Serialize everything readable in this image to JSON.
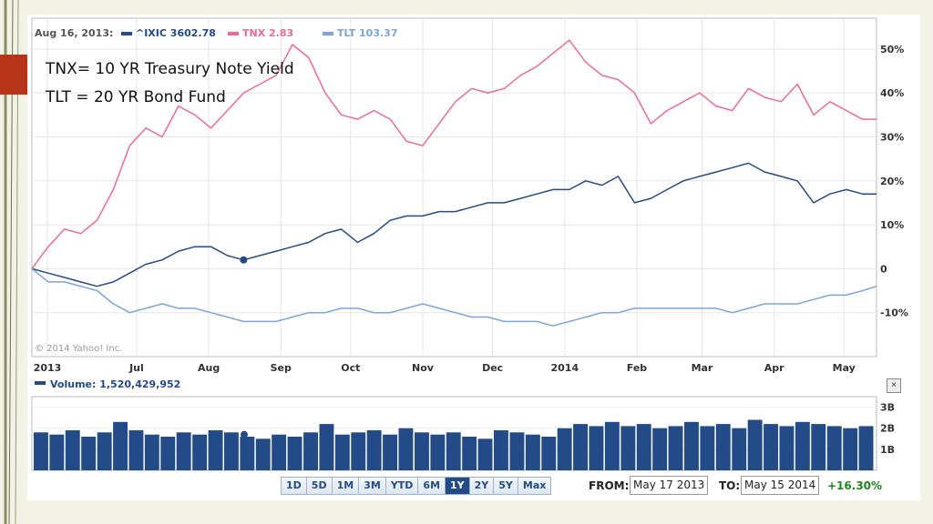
{
  "overlay": {
    "line1": "TNX= 10 YR Treasury Note Yield",
    "line2": "TLT = 20 YR Bond Fund"
  },
  "colors": {
    "ixic": "#234b88",
    "tnx": "#ee6a93",
    "tlt": "#7aa6db",
    "volume": "#234b88",
    "accent_red": "#b73418",
    "positive": "#1a8a1a"
  },
  "legend": {
    "date": "Aug 16, 2013:",
    "ixic": "^IXIC 3602.78",
    "tnx": "TNX 2.83",
    "tlt": "TLT 103.37"
  },
  "copyright": "© 2014 Yahoo! Inc.",
  "volume_label": "Volume: 1,520,429,952",
  "close_icon": "×",
  "range_buttons": [
    "1D",
    "5D",
    "1M",
    "3M",
    "YTD",
    "6M",
    "1Y",
    "2Y",
    "5Y",
    "Max"
  ],
  "active_range": "1Y",
  "from_label": "FROM:",
  "from_value": "May 17 2013",
  "to_label": "TO:",
  "to_value": "May 15 2014",
  "change": "+16.30%",
  "chart_data": [
    {
      "type": "line",
      "x_tick_labels": [
        "2013",
        "Jul",
        "Aug",
        "Sep",
        "Oct",
        "Nov",
        "Dec",
        "2014",
        "Feb",
        "Mar",
        "Apr",
        "May"
      ],
      "y_tick_labels": [
        "50%",
        "40%",
        "30%",
        "20%",
        "10%",
        "0",
        "-10%"
      ],
      "ylim": [
        -20,
        57
      ],
      "grid": true,
      "legend_position": "top-left",
      "x": [
        "2013-05-17",
        "2013-05-24",
        "2013-05-31",
        "2013-06-07",
        "2013-06-14",
        "2013-06-21",
        "2013-06-28",
        "2013-07-05",
        "2013-07-12",
        "2013-07-19",
        "2013-07-26",
        "2013-08-02",
        "2013-08-09",
        "2013-08-16",
        "2013-08-23",
        "2013-08-30",
        "2013-09-06",
        "2013-09-13",
        "2013-09-20",
        "2013-09-27",
        "2013-10-04",
        "2013-10-11",
        "2013-10-18",
        "2013-10-25",
        "2013-11-01",
        "2013-11-08",
        "2013-11-15",
        "2013-11-22",
        "2013-11-29",
        "2013-12-06",
        "2013-12-13",
        "2013-12-20",
        "2013-12-27",
        "2014-01-03",
        "2014-01-10",
        "2014-01-17",
        "2014-01-24",
        "2014-01-31",
        "2014-02-07",
        "2014-02-14",
        "2014-02-21",
        "2014-02-28",
        "2014-03-07",
        "2014-03-14",
        "2014-03-21",
        "2014-03-28",
        "2014-04-04",
        "2014-04-11",
        "2014-04-18",
        "2014-04-25",
        "2014-05-02",
        "2014-05-09",
        "2014-05-15"
      ],
      "series": [
        {
          "name": "TNX",
          "values": [
            0,
            5,
            9,
            8,
            11,
            18,
            28,
            32,
            30,
            37,
            35,
            32,
            36,
            40,
            42,
            44,
            51,
            48,
            40,
            35,
            34,
            36,
            34,
            29,
            28,
            33,
            38,
            41,
            40,
            41,
            44,
            46,
            49,
            52,
            47,
            44,
            43,
            40,
            33,
            36,
            38,
            40,
            37,
            36,
            41,
            39,
            38,
            42,
            35,
            38,
            36,
            34,
            34
          ]
        },
        {
          "name": "^IXIC",
          "values": [
            0,
            -1,
            -2,
            -3,
            -4,
            -3,
            -1,
            1,
            2,
            4,
            5,
            5,
            3,
            2,
            3,
            4,
            5,
            6,
            8,
            9,
            6,
            8,
            11,
            12,
            12,
            13,
            13,
            14,
            15,
            15,
            16,
            17,
            18,
            18,
            20,
            19,
            21,
            15,
            16,
            18,
            20,
            21,
            22,
            23,
            24,
            22,
            21,
            20,
            15,
            17,
            18,
            17,
            17
          ]
        },
        {
          "name": "TLT",
          "values": [
            0,
            -3,
            -3,
            -4,
            -5,
            -8,
            -10,
            -9,
            -8,
            -9,
            -9,
            -10,
            -11,
            -12,
            -12,
            -12,
            -11,
            -10,
            -10,
            -9,
            -9,
            -10,
            -10,
            -9,
            -8,
            -9,
            -10,
            -11,
            -11,
            -12,
            -12,
            -12,
            -13,
            -12,
            -11,
            -10,
            -10,
            -9,
            -9,
            -9,
            -9,
            -9,
            -9,
            -10,
            -9,
            -8,
            -8,
            -8,
            -7,
            -6,
            -6,
            -5,
            -4
          ]
        }
      ]
    },
    {
      "type": "bar",
      "title": "Volume: 1,520,429,952",
      "y_tick_labels": [
        "3B",
        "2B",
        "1B"
      ],
      "ylim": [
        0,
        3.5
      ],
      "values": [
        1.8,
        1.7,
        1.9,
        1.6,
        1.8,
        2.3,
        1.9,
        1.7,
        1.6,
        1.8,
        1.7,
        1.9,
        1.8,
        1.6,
        1.5,
        1.7,
        1.6,
        1.8,
        2.2,
        1.7,
        1.8,
        1.9,
        1.7,
        2.0,
        1.8,
        1.7,
        1.8,
        1.6,
        1.5,
        1.9,
        1.8,
        1.7,
        1.6,
        2.0,
        2.2,
        2.1,
        2.3,
        2.1,
        2.2,
        2.0,
        2.1,
        2.3,
        2.1,
        2.2,
        2.0,
        2.4,
        2.2,
        2.1,
        2.3,
        2.2,
        2.1,
        2.0,
        2.1
      ]
    }
  ]
}
